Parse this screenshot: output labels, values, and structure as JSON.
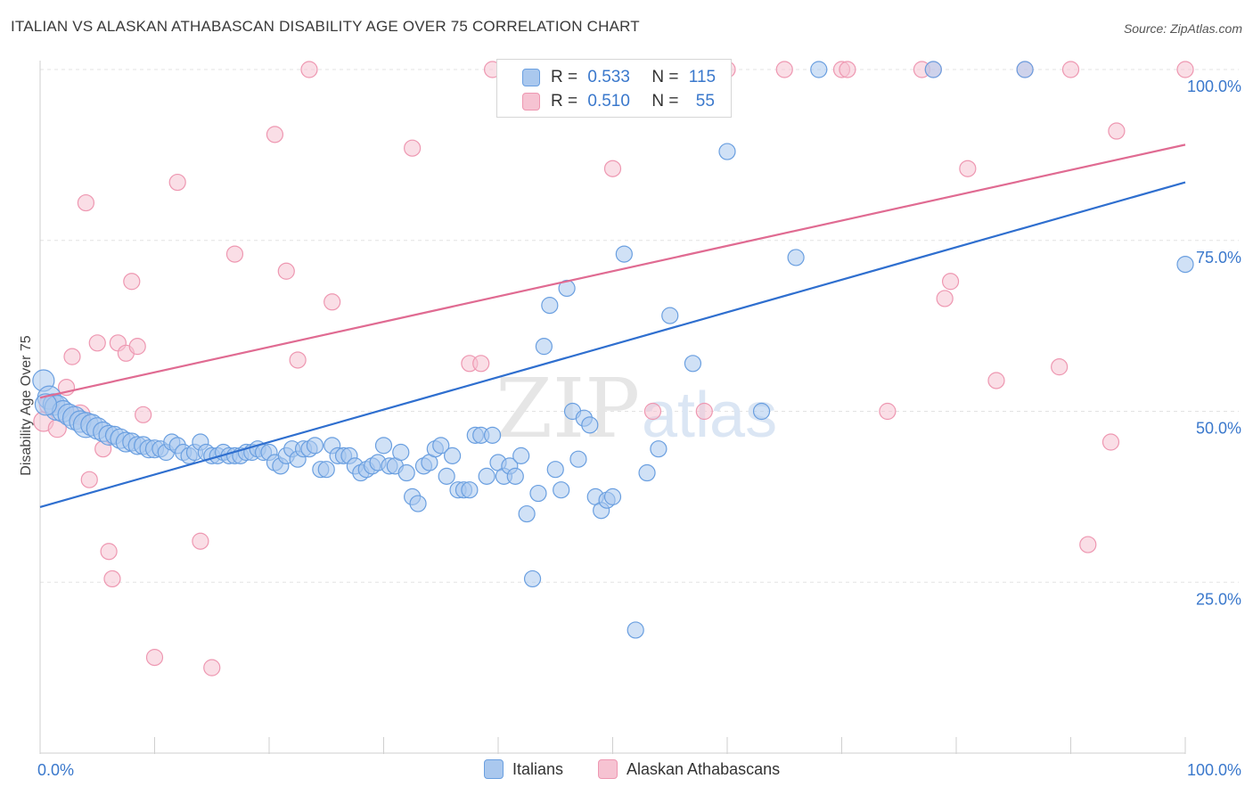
{
  "header": {
    "title": "ITALIAN VS ALASKAN ATHABASCAN DISABILITY AGE OVER 75 CORRELATION CHART",
    "source": "Source: ZipAtlas.com"
  },
  "watermark": {
    "zip": "ZIP",
    "atlas": "atlas"
  },
  "legend": {
    "italians": {
      "r_label": "R =",
      "r_value": "0.533",
      "n_label": "N =",
      "n_value": "115"
    },
    "alaskan": {
      "r_label": "R =",
      "r_value": "0.510",
      "n_label": "N =",
      "n_value": "55"
    }
  },
  "colors": {
    "italians_fill": "#aac8ee",
    "italians_stroke": "#6a9fe0",
    "italians_line": "#2f6fcf",
    "alaskan_fill": "#f6c3d2",
    "alaskan_stroke": "#ee97b1",
    "alaskan_line": "#e06b92",
    "axis_label": "#3a78cc",
    "grid": "#e3e3e3"
  },
  "chart_data": {
    "type": "scatter",
    "title": "ITALIAN VS ALASKAN ATHABASCAN DISABILITY AGE OVER 75 CORRELATION CHART",
    "xlabel": "",
    "ylabel": "Disability Age Over 75",
    "xlim": [
      0,
      100
    ],
    "ylim": [
      0,
      100
    ],
    "x_tick_labels": [
      "0.0%",
      "100.0%"
    ],
    "y_ticks": [
      25,
      50,
      75,
      100
    ],
    "y_tick_labels": [
      "25.0%",
      "50.0%",
      "75.0%",
      "100.0%"
    ],
    "grid": true,
    "legend_position": "top-center",
    "series": [
      {
        "name": "Italians",
        "regression": {
          "x": [
            0,
            100
          ],
          "y": [
            36.0,
            83.5
          ]
        },
        "points": [
          [
            0.3,
            54.5,
            12
          ],
          [
            0.8,
            52,
            13
          ],
          [
            1.2,
            51,
            12
          ],
          [
            1.5,
            50.5,
            14
          ],
          [
            2,
            50,
            12
          ],
          [
            2.5,
            49.5,
            12
          ],
          [
            3,
            49,
            13
          ],
          [
            3.5,
            48.5,
            12
          ],
          [
            4,
            48,
            14
          ],
          [
            4.5,
            48,
            12
          ],
          [
            5,
            47.5,
            12
          ],
          [
            5.5,
            47,
            11
          ],
          [
            6,
            46.5,
            11
          ],
          [
            6.5,
            46.5,
            10
          ],
          [
            7,
            46,
            11
          ],
          [
            7.5,
            45.5,
            11
          ],
          [
            8,
            45.5,
            10
          ],
          [
            8.5,
            45,
            10
          ],
          [
            9,
            45,
            10
          ],
          [
            9.5,
            44.5,
            10
          ],
          [
            10,
            44.5,
            10
          ],
          [
            10.5,
            44.5,
            9
          ],
          [
            11,
            44,
            9
          ],
          [
            11.5,
            45.5,
            9
          ],
          [
            12,
            45,
            9
          ],
          [
            12.5,
            44,
            9
          ],
          [
            13,
            43.5,
            9
          ],
          [
            13.5,
            44,
            9
          ],
          [
            14,
            45.5,
            9
          ],
          [
            14.5,
            44,
            9
          ],
          [
            15,
            43.5,
            9
          ],
          [
            15.5,
            43.5,
            9
          ],
          [
            16,
            44,
            9
          ],
          [
            16.5,
            43.5,
            9
          ],
          [
            17,
            43.5,
            9
          ],
          [
            17.5,
            43.5,
            9
          ],
          [
            18,
            44,
            9
          ],
          [
            18.5,
            44,
            9
          ],
          [
            19,
            44.5,
            9
          ],
          [
            19.5,
            44,
            9
          ],
          [
            20,
            44,
            9
          ],
          [
            20.5,
            42.5,
            9
          ],
          [
            21,
            42,
            9
          ],
          [
            21.5,
            43.5,
            9
          ],
          [
            22,
            44.5,
            9
          ],
          [
            22.5,
            43,
            9
          ],
          [
            23,
            44.5,
            9
          ],
          [
            23.5,
            44.5,
            9
          ],
          [
            24,
            45,
            9
          ],
          [
            24.5,
            41.5,
            9
          ],
          [
            25,
            41.5,
            9
          ],
          [
            25.5,
            45,
            9
          ],
          [
            26,
            43.5,
            9
          ],
          [
            26.5,
            43.5,
            9
          ],
          [
            27,
            43.5,
            9
          ],
          [
            27.5,
            42,
            9
          ],
          [
            28,
            41,
            9
          ],
          [
            28.5,
            41.5,
            9
          ],
          [
            29,
            42,
            9
          ],
          [
            29.5,
            42.5,
            9
          ],
          [
            30,
            45,
            9
          ],
          [
            30.5,
            42,
            9
          ],
          [
            31,
            42,
            9
          ],
          [
            31.5,
            44,
            9
          ],
          [
            32,
            41,
            9
          ],
          [
            32.5,
            37.5,
            9
          ],
          [
            33,
            36.5,
            9
          ],
          [
            33.5,
            42,
            9
          ],
          [
            34,
            42.5,
            9
          ],
          [
            34.5,
            44.5,
            9
          ],
          [
            35,
            45,
            9
          ],
          [
            35.5,
            40.5,
            9
          ],
          [
            36,
            43.5,
            9
          ],
          [
            36.5,
            38.5,
            9
          ],
          [
            37,
            38.5,
            9
          ],
          [
            37.5,
            38.5,
            9
          ],
          [
            38,
            46.5,
            9
          ],
          [
            38.5,
            46.5,
            9
          ],
          [
            39,
            40.5,
            9
          ],
          [
            39.5,
            46.5,
            9
          ],
          [
            40,
            42.5,
            9
          ],
          [
            40.5,
            40.5,
            9
          ],
          [
            41,
            42,
            9
          ],
          [
            41.5,
            40.5,
            9
          ],
          [
            42,
            43.5,
            9
          ],
          [
            42.5,
            35,
            9
          ],
          [
            43,
            25.5,
            9
          ],
          [
            43.5,
            38,
            9
          ],
          [
            44,
            59.5,
            9
          ],
          [
            44.5,
            65.5,
            9
          ],
          [
            45,
            41.5,
            9
          ],
          [
            45.5,
            38.5,
            9
          ],
          [
            46,
            68,
            9
          ],
          [
            46.5,
            50,
            9
          ],
          [
            47,
            43,
            9
          ],
          [
            47.5,
            49,
            9
          ],
          [
            48,
            48,
            9
          ],
          [
            48.5,
            37.5,
            9
          ],
          [
            49,
            35.5,
            9
          ],
          [
            49.5,
            37,
            9
          ],
          [
            50,
            37.5,
            9
          ],
          [
            51,
            73,
            9
          ],
          [
            52,
            18,
            9
          ],
          [
            53,
            41,
            9
          ],
          [
            54,
            44.5,
            9
          ],
          [
            55,
            64,
            9
          ],
          [
            57,
            57,
            9
          ],
          [
            60,
            88,
            9
          ],
          [
            63,
            50,
            9
          ],
          [
            66,
            72.5,
            9
          ],
          [
            68,
            100,
            9
          ],
          [
            78,
            100,
            9
          ],
          [
            86,
            100,
            9
          ],
          [
            100,
            71.5,
            9
          ],
          [
            0.5,
            51,
            12
          ]
        ]
      },
      {
        "name": "Alaskan Athabascans",
        "regression": {
          "x": [
            0,
            100
          ],
          "y": [
            52.0,
            89.0
          ]
        },
        "points": [
          [
            0.3,
            48.5,
            11
          ],
          [
            0.8,
            51,
            11
          ],
          [
            1.5,
            47.5,
            10
          ],
          [
            2.3,
            53.5,
            9
          ],
          [
            2.8,
            58,
            9
          ],
          [
            3.5,
            49.5,
            11
          ],
          [
            4,
            80.5,
            9
          ],
          [
            4.3,
            40,
            9
          ],
          [
            5,
            60,
            9
          ],
          [
            5.5,
            44.5,
            9
          ],
          [
            6,
            29.5,
            9
          ],
          [
            6.3,
            25.5,
            9
          ],
          [
            6.8,
            60,
            9
          ],
          [
            7.5,
            58.5,
            9
          ],
          [
            8,
            69,
            9
          ],
          [
            8.5,
            59.5,
            9
          ],
          [
            9,
            49.5,
            9
          ],
          [
            10,
            14,
            9
          ],
          [
            12,
            83.5,
            9
          ],
          [
            14,
            31,
            9
          ],
          [
            15,
            12.5,
            9
          ],
          [
            17,
            73,
            9
          ],
          [
            20.5,
            90.5,
            9
          ],
          [
            21.5,
            70.5,
            9
          ],
          [
            22.5,
            57.5,
            9
          ],
          [
            23.5,
            100,
            9
          ],
          [
            25.5,
            66,
            9
          ],
          [
            32.5,
            88.5,
            9
          ],
          [
            37.5,
            57,
            9
          ],
          [
            38.5,
            57,
            9
          ],
          [
            39.5,
            100,
            9
          ],
          [
            43,
            100,
            9
          ],
          [
            50,
            85.5,
            9
          ],
          [
            52,
            100,
            9
          ],
          [
            53.5,
            50,
            9
          ],
          [
            55.5,
            100,
            9
          ],
          [
            58,
            50,
            9
          ],
          [
            60,
            100,
            9
          ],
          [
            65,
            100,
            9
          ],
          [
            70,
            100,
            9
          ],
          [
            70.5,
            100,
            9
          ],
          [
            74,
            50,
            9
          ],
          [
            77,
            100,
            9
          ],
          [
            78,
            100,
            9
          ],
          [
            79,
            66.5,
            9
          ],
          [
            79.5,
            69,
            9
          ],
          [
            81,
            85.5,
            9
          ],
          [
            83.5,
            54.5,
            9
          ],
          [
            86,
            100,
            9
          ],
          [
            89,
            56.5,
            9
          ],
          [
            90,
            100,
            9
          ],
          [
            91.5,
            30.5,
            9
          ],
          [
            93.5,
            45.5,
            9
          ],
          [
            94,
            91,
            9
          ],
          [
            100,
            100,
            9
          ]
        ]
      }
    ]
  },
  "bottom_legend": {
    "italians": "Italians",
    "alaskan": "Alaskan Athabascans"
  }
}
